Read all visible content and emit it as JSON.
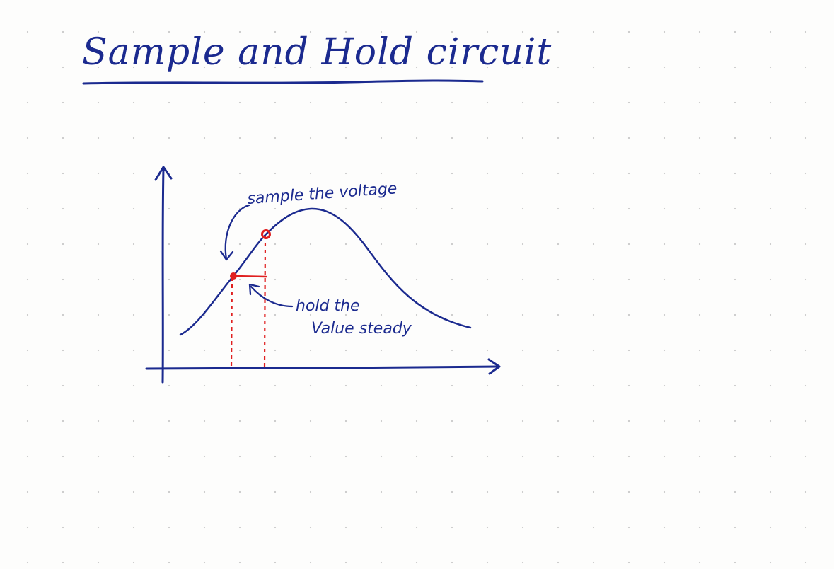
{
  "title": "Sample and Hold circuit",
  "annotations": {
    "sample": "sample the voltage",
    "hold_line1": "hold the",
    "hold_line2": "Value steady"
  },
  "colors": {
    "ink": "#1b2a8f",
    "highlight": "#e02020",
    "dots": "#c9c9c9"
  }
}
